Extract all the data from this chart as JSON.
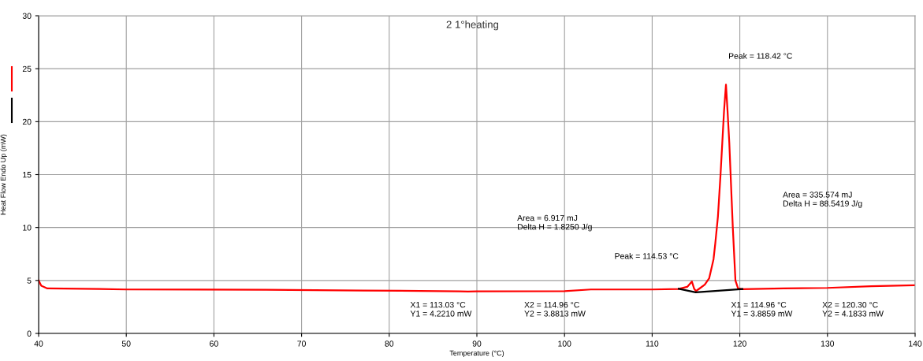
{
  "chart_data": {
    "type": "line",
    "title": "2 1°heating",
    "xlabel": "Temperature (°C)",
    "ylabel": "Heat Flow Endo Up (mW)",
    "xlim": [
      40,
      140
    ],
    "xticks": [
      40,
      50,
      60,
      70,
      80,
      90,
      100,
      110,
      120,
      130,
      140
    ],
    "ylim": [
      0,
      30
    ],
    "yticks": [
      0,
      5,
      10,
      15,
      20,
      25,
      30
    ],
    "grid": true,
    "series": [
      {
        "color": "#ff0000",
        "x": [
          40,
          40.3,
          41,
          47,
          50,
          66,
          77,
          88,
          89,
          90,
          100,
          103,
          110,
          113,
          114,
          114.53,
          114.8,
          115,
          115.5,
          116,
          116.5,
          117,
          117.2,
          117.5,
          117.8,
          118,
          118.2,
          118.42,
          118.6,
          118.8,
          119,
          119.2,
          119.5,
          119.8,
          120.3,
          125,
          130,
          135,
          140
        ],
        "values": [
          5.0,
          4.5,
          4.25,
          4.2,
          4.15,
          4.12,
          4.05,
          3.98,
          3.95,
          3.97,
          4.0,
          4.15,
          4.15,
          4.2,
          4.4,
          4.9,
          4.2,
          4.0,
          4.3,
          4.6,
          5.2,
          7,
          8.5,
          11,
          15,
          18,
          21,
          23.5,
          21,
          18,
          14,
          10,
          5,
          4.25,
          4.18,
          4.25,
          4.3,
          4.45,
          4.55
        ]
      },
      {
        "color": "#000000",
        "x": [
          113.03,
          114.96,
          114.96,
          120.3
        ],
        "values": [
          4.221,
          3.8813,
          3.8859,
          4.1833
        ]
      }
    ],
    "annotations": [
      "Peak = 118.42 °C",
      "Area = 335.574 mJ\nDelta H = 88.5419 J/g",
      "Area = 6.917 mJ\nDelta H = 1.8250 J/g",
      "Peak = 114.53 °C",
      "X1 = 113.03 °C\nY1 = 4.2210 mW",
      "X2 = 114.96 °C\nY2 = 3.8813 mW",
      "X1 = 114.96 °C\nY1 = 3.8859 mW",
      "X2 = 120.30 °C\nY2 = 4.1833 mW"
    ]
  }
}
